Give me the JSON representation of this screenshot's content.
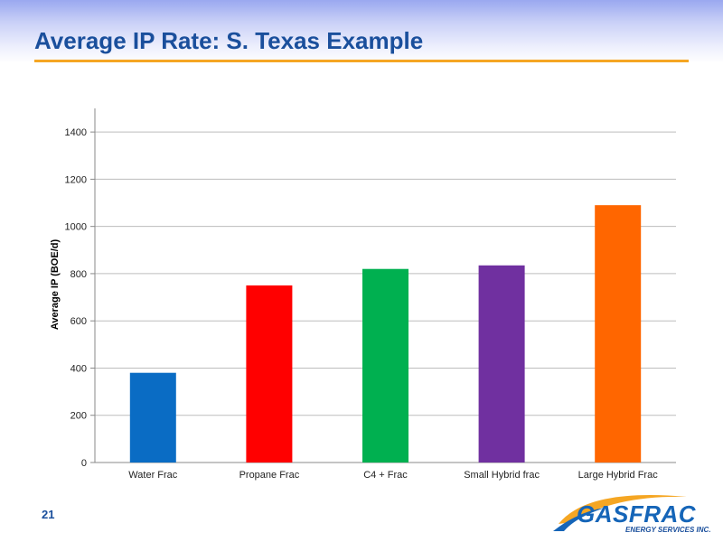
{
  "slide": {
    "title": "Average IP Rate: S. Texas Example",
    "page_number": "21",
    "accent_color": "#f5a623",
    "title_color": "#1a4f9c"
  },
  "logo": {
    "name": "GASFRAC",
    "tagline": "ENERGY SERVICES INC.",
    "icon": "gasfrac-swoosh-logo"
  },
  "chart_data": {
    "type": "bar",
    "categories": [
      "Water Frac",
      "Propane Frac",
      "C4 + Frac",
      "Small Hybrid frac",
      "Large Hybrid Frac"
    ],
    "values": [
      380,
      750,
      820,
      835,
      1090
    ],
    "colors": [
      "#0a6cc4",
      "#ff0000",
      "#00b050",
      "#7030a0",
      "#ff6600"
    ],
    "xlabel": "",
    "ylabel": "Average IP (BOE/d)",
    "ylim": [
      0,
      1500
    ],
    "yticks": [
      0,
      200,
      400,
      600,
      800,
      1000,
      1200,
      1400
    ],
    "grid": true,
    "legend": "none"
  }
}
